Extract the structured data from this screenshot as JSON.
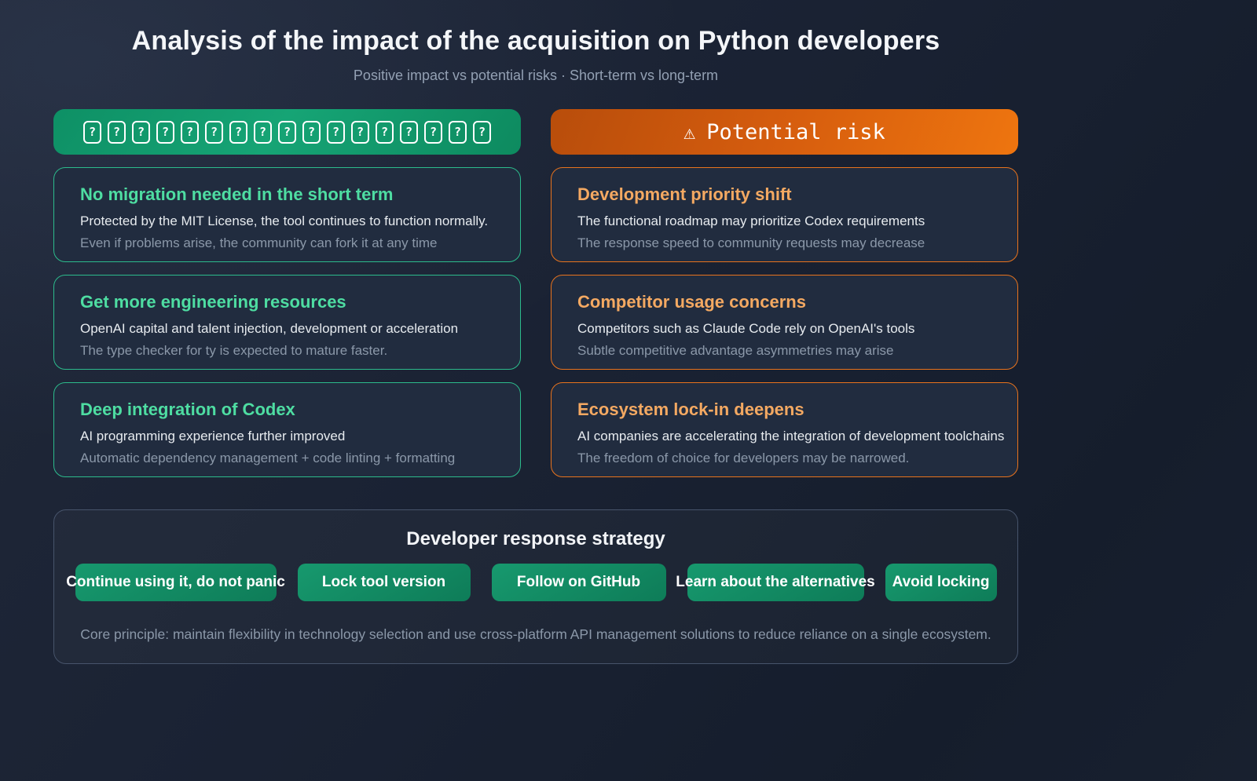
{
  "page": {
    "title": "Analysis of the impact of the acquisition on Python developers",
    "subtitle": "Positive impact vs potential risks · Short-term vs long-term"
  },
  "columns": {
    "positive": {
      "header": {
        "tofu_count": 17,
        "tofu_char": "?"
      },
      "cards": [
        {
          "title": "No migration needed in the short term",
          "line1": "Protected by the MIT License, the tool continues to function normally.",
          "line2": "Even if problems arise, the community can fork it at any time"
        },
        {
          "title": "Get more engineering resources",
          "line1": "OpenAI capital and talent injection, development or acceleration",
          "line2": "The type checker for ty is expected to mature faster."
        },
        {
          "title": "Deep integration of Codex",
          "line1": "AI programming experience further improved",
          "line2": "Automatic dependency management + code linting + formatting"
        }
      ]
    },
    "risk": {
      "header": {
        "icon": "⚠",
        "label": "Potential risk"
      },
      "cards": [
        {
          "title": "Development priority shift",
          "line1": "The functional roadmap may prioritize Codex requirements",
          "line2": "The response speed to community requests may decrease"
        },
        {
          "title": "Competitor usage concerns",
          "line1": "Competitors such as Claude Code rely on OpenAI's tools",
          "line2": "Subtle competitive advantage asymmetries may arise"
        },
        {
          "title": "Ecosystem lock-in deepens",
          "line1": "AI companies are accelerating the integration of development toolchains",
          "line2": "The freedom of choice for developers may be narrowed."
        }
      ]
    }
  },
  "strategy": {
    "title": "Developer response strategy",
    "pills": [
      "Continue using it, do not panic",
      "Lock tool version",
      "Follow on GitHub",
      "Learn about the alternatives",
      "Avoid locking"
    ],
    "note": "Core principle: maintain flexibility in technology selection and use cross-platform API management solutions to reduce reliance on a single ecosystem."
  },
  "colors": {
    "background": "#1a2233",
    "card_background": "#212c3f",
    "positive_border": "#2cbb8c",
    "positive_title": "#4edda2",
    "positive_header_gradient": [
      "#0e9065",
      "#16a475",
      "#0d8a5f"
    ],
    "risk_border": "#e8731d",
    "risk_title": "#f4a962",
    "risk_header_gradient": [
      "#b84d0b",
      "#ee750f"
    ],
    "pill_gradient": [
      "#17996e",
      "#0e7c58"
    ],
    "body_text": "#e7ebef",
    "muted_text": "#8b98a9",
    "strategy_border": "#47546b"
  }
}
